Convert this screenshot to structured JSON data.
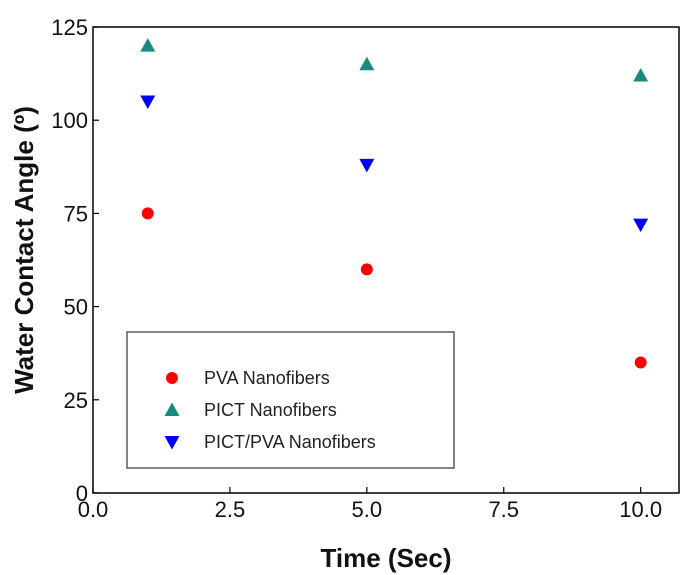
{
  "chart_data": {
    "type": "scatter",
    "xlabel": "Time (Sec)",
    "ylabel": "Water Contact Angle (º)",
    "xlim": [
      0.0,
      10.7
    ],
    "ylim": [
      0,
      125
    ],
    "xticks": [
      "0.0",
      "2.5",
      "5.0",
      "7.5",
      "10.0"
    ],
    "yticks": [
      "0",
      "25",
      "50",
      "75",
      "100",
      "125"
    ],
    "x": [
      1,
      5,
      10
    ],
    "series": [
      {
        "name": "PVA Nanofibers",
        "marker": "circle",
        "color": "#ff0000",
        "values": [
          75,
          60,
          35
        ]
      },
      {
        "name": "PICT Nanofibers",
        "marker": "triangle-up",
        "color": "#1a8a80",
        "values": [
          120,
          115,
          112
        ]
      },
      {
        "name": "PICT/PVA Nanofibers",
        "marker": "triangle-down",
        "color": "#0000ff",
        "values": [
          105,
          88,
          72
        ]
      }
    ],
    "legend_position": "bottom-left",
    "grid": false
  }
}
